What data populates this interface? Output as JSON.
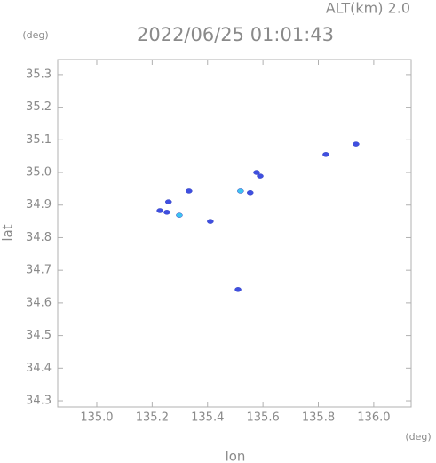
{
  "chart_data": {
    "type": "scatter",
    "title": "2022/06/25 01:01:43",
    "subtitle": "ALT(km) 2.0",
    "y_unit": "(deg)",
    "x_unit": "(deg)",
    "x_label": "lon",
    "y_label": "lat",
    "xlim": [
      134.859,
      136.135
    ],
    "ylim": [
      34.281,
      35.346
    ],
    "xticks": [
      {
        "value": 135.0,
        "label": "135.0"
      },
      {
        "value": 135.2,
        "label": "135.2"
      },
      {
        "value": 135.4,
        "label": "135.4"
      },
      {
        "value": 135.6,
        "label": "135.6"
      },
      {
        "value": 135.8,
        "label": "135.8"
      },
      {
        "value": 136.0,
        "label": "136.0"
      }
    ],
    "yticks": [
      34.3,
      34.4,
      34.5,
      34.6,
      34.7,
      34.8,
      34.9,
      {
        "value": 35.0,
        "label": "35.0"
      },
      35.1,
      35.2,
      35.3
    ],
    "grid": false,
    "series": [
      {
        "color": "#3f4fe0",
        "x": [
          135.228,
          135.253,
          135.259,
          135.333,
          135.41,
          135.554,
          135.577,
          135.59,
          135.827,
          135.936,
          135.51
        ],
        "values": [
          34.883,
          34.878,
          34.91,
          34.943,
          34.85,
          34.938,
          35.0,
          34.989,
          35.055,
          35.087,
          34.641
        ]
      },
      {
        "color": "#3cc4f2",
        "x": [
          135.298,
          135.519
        ],
        "values": [
          34.869,
          34.943
        ]
      }
    ]
  }
}
